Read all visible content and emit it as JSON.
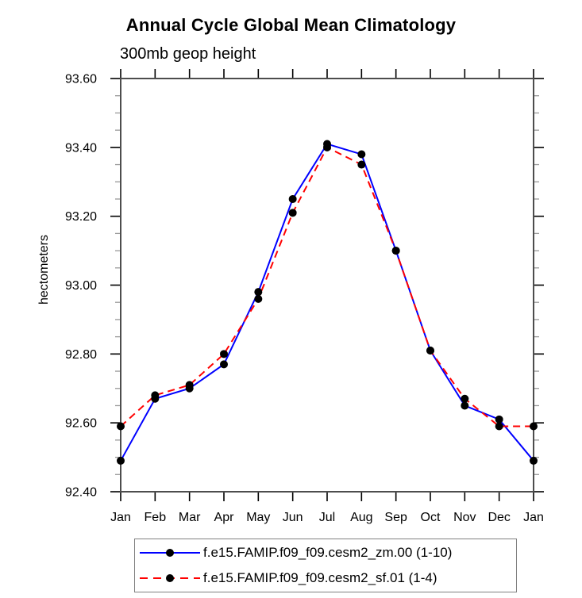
{
  "chart": {
    "title": "Annual Cycle Global Mean Climatology",
    "subtitle": "300mb geop height",
    "ylabel": "hectometers",
    "colors": {
      "axis": "#4d4d4d",
      "major_tick": "#000000",
      "minor_tick": "#999999",
      "marker": "#000000",
      "legend_border": "#808080",
      "series_blue": "#0000ff",
      "series_red": "#ff0000"
    }
  },
  "chart_data": {
    "type": "line",
    "title": "Annual Cycle Global Mean Climatology",
    "subtitle": "300mb geop height",
    "xlabel": "",
    "ylabel": "hectometers",
    "categories": [
      "Jan",
      "Feb",
      "Mar",
      "Apr",
      "May",
      "Jun",
      "Jul",
      "Aug",
      "Sep",
      "Oct",
      "Nov",
      "Dec",
      "Jan"
    ],
    "ylim": [
      92.4,
      93.6
    ],
    "ytick_step": 0.2,
    "ytick_minor_step": 0.05,
    "ytick_labels": [
      "92.40",
      "92.60",
      "92.80",
      "93.00",
      "93.20",
      "93.40",
      "93.60"
    ],
    "grid": false,
    "legend_position": "bottom",
    "series": [
      {
        "name": "f.e15.FAMIP.f09_f09.cesm2_zm.00 (1-10)",
        "color": "#0000ff",
        "style": "solid",
        "marker": "circle",
        "marker_color": "#000000",
        "values": [
          92.49,
          92.67,
          92.7,
          92.77,
          92.98,
          93.25,
          93.41,
          93.38,
          93.1,
          92.81,
          92.65,
          92.61,
          92.49
        ]
      },
      {
        "name": "f.e15.FAMIP.f09_f09.cesm2_sf.01 (1-4)",
        "color": "#ff0000",
        "style": "dashed",
        "marker": "circle",
        "marker_color": "#000000",
        "values": [
          92.59,
          92.68,
          92.71,
          92.8,
          92.96,
          93.21,
          93.4,
          93.35,
          93.1,
          92.81,
          92.67,
          92.59,
          92.59
        ]
      }
    ]
  },
  "legend": {
    "items": [
      {
        "label": "f.e15.FAMIP.f09_f09.cesm2_zm.00 (1-10)"
      },
      {
        "label": "f.e15.FAMIP.f09_f09.cesm2_sf.01 (1-4)"
      }
    ]
  }
}
